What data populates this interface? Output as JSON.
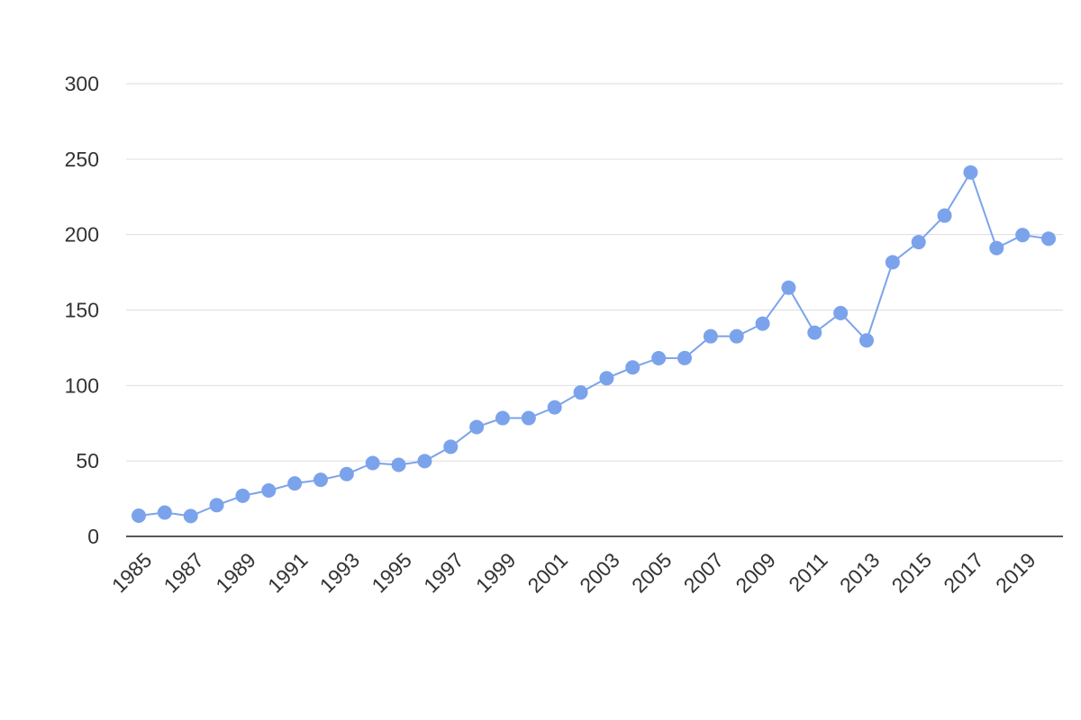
{
  "chart_data": {
    "type": "line",
    "title": "",
    "xlabel": "",
    "ylabel": "",
    "ylim": [
      0,
      300
    ],
    "yticks": [
      "0",
      "50",
      "100",
      "150",
      "200",
      "250",
      "300"
    ],
    "x": [
      1985,
      1986,
      1987,
      1988,
      1989,
      1990,
      1991,
      1992,
      1993,
      1994,
      1995,
      1996,
      1997,
      1998,
      1999,
      2000,
      2001,
      2002,
      2003,
      2004,
      2005,
      2006,
      2007,
      2008,
      2009,
      2010,
      2011,
      2012,
      2013,
      2014,
      2015,
      2016,
      2017,
      2018,
      2019,
      2020
    ],
    "xtick_labels": [
      "1985",
      "1987",
      "1989",
      "1991",
      "1993",
      "1995",
      "1997",
      "1999",
      "2001",
      "2003",
      "2005",
      "2007",
      "2009",
      "2011",
      "2013",
      "2015",
      "2017",
      "2019"
    ],
    "series": [
      {
        "values": [
          13.7,
          15.8,
          13.5,
          20.7,
          26.9,
          30.4,
          35.1,
          37.5,
          41.3,
          48.6,
          47.4,
          49.9,
          59.4,
          72.5,
          78.4,
          78.4,
          85.5,
          95.4,
          104.8,
          112.0,
          118.1,
          118.2,
          132.6,
          132.6,
          141.0,
          164.8,
          135.0,
          148.0,
          129.9,
          181.7,
          195.0,
          212.6,
          241.2,
          191.1,
          199.7,
          197.3
        ],
        "color": "#7ba3ec"
      }
    ],
    "grid": true,
    "legend": "none"
  }
}
